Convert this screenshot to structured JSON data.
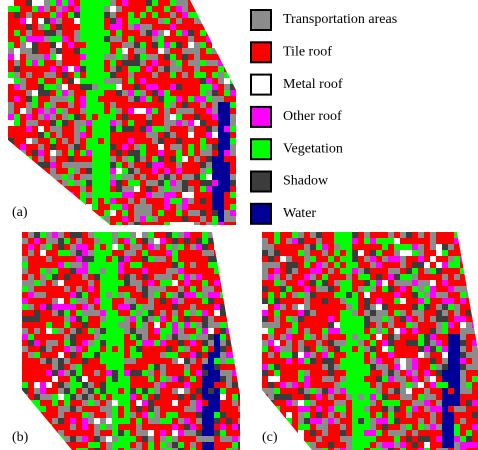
{
  "legend": [
    {
      "label": "Transportation areas",
      "color": "#8c8c8c"
    },
    {
      "label": "Tile roof",
      "color": "#ff0000"
    },
    {
      "label": "Metal roof",
      "color": "#ffffff"
    },
    {
      "label": "Other roof",
      "color": "#ff00ff"
    },
    {
      "label": "Vegetation",
      "color": "#00ff00"
    },
    {
      "label": "Shadow",
      "color": "#3c3c3c"
    },
    {
      "label": "Water",
      "color": "#000099"
    }
  ],
  "panels": [
    "(a)",
    "(b)",
    "(c)"
  ]
}
